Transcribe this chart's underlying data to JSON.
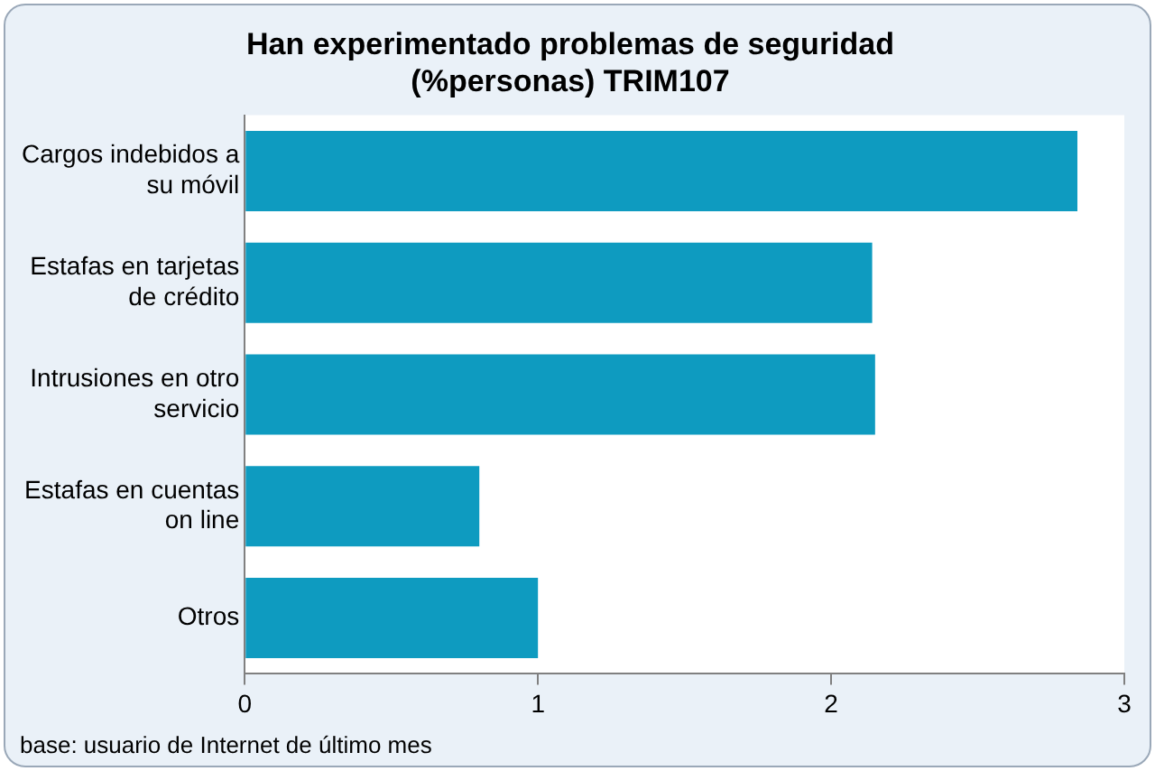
{
  "chart_data": {
    "type": "bar",
    "orientation": "horizontal",
    "title": "Han experimentado problemas de seguridad (%personas) TRIM107",
    "categories": [
      "Cargos indebidos a su móvil",
      "Estafas en tarjetas de crédito",
      "Intrusiones en otro servicio",
      "Estafas en cuentas on line",
      "Otros"
    ],
    "values": [
      2.84,
      2.14,
      2.15,
      0.8,
      1.0
    ],
    "color": "#0e9bc0",
    "xlim": [
      0,
      3
    ],
    "xticks": [
      0,
      1,
      2,
      3
    ],
    "grid": false,
    "legend": false,
    "annotations": [
      "base: usuario de Internet de último mes"
    ]
  }
}
